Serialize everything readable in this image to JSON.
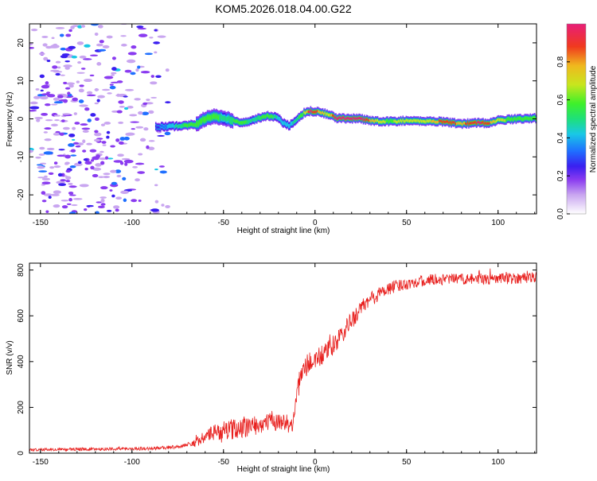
{
  "figure_title": "KOM5.2026.018.04.00.G22",
  "colorbar": {
    "label": "Normalized spectral amplitude",
    "ticks": [
      "0.0",
      "0.2",
      "0.4",
      "0.6",
      "0.8"
    ],
    "tick_values": [
      0.0,
      0.2,
      0.4,
      0.6,
      0.8
    ],
    "range": [
      0,
      1
    ],
    "colors": [
      "#ffffff",
      "#c9a6f0",
      "#8a3bf0",
      "#3a1ff0",
      "#1f6fff",
      "#19c8e6",
      "#1ee07a",
      "#3ef02a",
      "#c8e61e",
      "#f0b81e",
      "#f03a1e",
      "#e81e78"
    ]
  },
  "chart_data": [
    {
      "type": "heatmap",
      "title": "KOM5.2026.018.04.00.G22",
      "xlabel": "Height of straight line (km)",
      "ylabel": "Frequency (Hz)",
      "xlim": [
        -156,
        121
      ],
      "ylim": [
        -25,
        25
      ],
      "xticks": [
        -150,
        -100,
        -50,
        0,
        50,
        100
      ],
      "xtick_labels": [
        "-150",
        "-100",
        "-50",
        "0",
        "50",
        "100"
      ],
      "yticks": [
        -20,
        -10,
        0,
        10,
        20
      ],
      "ytick_labels": [
        "-20",
        "-10",
        "0",
        "10",
        "20"
      ],
      "ridge": {
        "description": "dominant frequency ridge",
        "x": [
          -87,
          -80,
          -72,
          -65,
          -60,
          -55,
          -50,
          -45,
          -40,
          -35,
          -30,
          -25,
          -20,
          -17,
          -14,
          -10,
          -6,
          -3,
          0,
          3,
          8,
          12,
          18,
          25,
          30,
          40,
          50,
          60,
          70,
          80,
          90,
          95,
          100,
          110,
          121
        ],
        "y": [
          -2.2,
          -2.0,
          -1.8,
          -1.4,
          0.0,
          0.6,
          0.3,
          -0.5,
          -1.0,
          -0.6,
          0.4,
          0.8,
          0.2,
          -1.2,
          -1.8,
          0.0,
          1.6,
          2.0,
          2.0,
          1.8,
          1.0,
          0.2,
          0.1,
          0.0,
          -0.5,
          -0.7,
          -0.5,
          -0.6,
          -0.7,
          -1.3,
          -1.0,
          -1.2,
          -0.4,
          0.0,
          0.2
        ],
        "amplitude": [
          0.2,
          0.35,
          0.5,
          0.55,
          0.5,
          0.55,
          0.45,
          0.5,
          0.55,
          0.45,
          0.5,
          0.55,
          0.4,
          0.35,
          0.4,
          0.45,
          0.6,
          0.9,
          0.85,
          0.7,
          0.65,
          1.0,
          0.95,
          1.0,
          0.75,
          0.55,
          0.65,
          0.6,
          0.85,
          0.75,
          0.9,
          0.8,
          0.6,
          0.55,
          0.5
        ]
      },
      "noise_region_x": [
        -156,
        -80
      ],
      "noise_amplitude_range": [
        0.05,
        0.35
      ]
    },
    {
      "type": "line",
      "title": "",
      "xlabel": "Height of straight line (km)",
      "ylabel": "SNR (v/v)",
      "xlim": [
        -156,
        121
      ],
      "ylim": [
        0,
        830
      ],
      "xticks": [
        -150,
        -100,
        -50,
        0,
        50,
        100
      ],
      "xtick_labels": [
        "-150",
        "-100",
        "-50",
        "0",
        "50",
        "100"
      ],
      "yticks": [
        0,
        200,
        400,
        600,
        800
      ],
      "ytick_labels": [
        "0",
        "200",
        "400",
        "600",
        "800"
      ],
      "color": "#e8201e",
      "trend": {
        "x": [
          -156,
          -120,
          -90,
          -75,
          -66,
          -60,
          -55,
          -50,
          -45,
          -40,
          -35,
          -30,
          -25,
          -20,
          -15,
          -12,
          -10,
          -8,
          -5,
          0,
          5,
          10,
          15,
          20,
          25,
          30,
          35,
          40,
          50,
          60,
          70,
          80,
          90,
          100,
          110,
          121
        ],
        "y": [
          15,
          18,
          20,
          28,
          45,
          70,
          90,
          100,
          105,
          110,
          115,
          125,
          135,
          140,
          135,
          120,
          260,
          330,
          380,
          410,
          430,
          470,
          520,
          580,
          630,
          670,
          695,
          720,
          740,
          755,
          760,
          760,
          760,
          760,
          765,
          770
        ]
      },
      "noise_amplitude": {
        "x": [
          -156,
          -70,
          -60,
          -45,
          -12,
          -10,
          10,
          30,
          50,
          121
        ],
        "y": [
          6,
          8,
          30,
          45,
          35,
          50,
          45,
          35,
          25,
          25
        ]
      }
    }
  ]
}
